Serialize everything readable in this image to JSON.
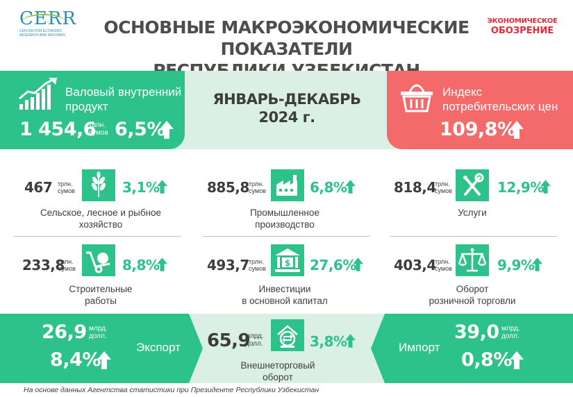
{
  "header": {
    "cerr_logo": "CERR",
    "cerr_sub": "Center for economic research and reforms",
    "title_line1": "ОСНОВНЫЕ МАКРОЭКОНОМИЧЕСКИЕ ПОКАЗАТЕЛИ",
    "title_line2": "РЕСПУБЛИКИ УЗБЕКИСТАН",
    "eo_logo_line1": "ЭКОНОМИЧЕСКОЕ",
    "eo_logo_line2": "ОБОЗРЕНИЕ"
  },
  "period": {
    "line1": "ЯНВАРЬ-ДЕКАБРЬ",
    "line2": "2024 г."
  },
  "gdp": {
    "label_line1": "Валовый внутренний",
    "label_line2": "продукт",
    "value": "1 454,6",
    "unit_line1": "трлн.",
    "unit_line2": "сумов",
    "growth": "6,5%"
  },
  "cpi": {
    "label_line1": "Индекс",
    "label_line2": "потребительских цен",
    "value": "109,8%"
  },
  "sectors": [
    {
      "value": "467",
      "unit_line1": "трлн.",
      "unit_line2": "сумов",
      "growth": "3,1%",
      "label_line1": "Сельское, лесное и рыбное",
      "label_line2": "хозяйство",
      "icon": "wheat-icon"
    },
    {
      "value": "885,8",
      "unit_line1": "трлн.",
      "unit_line2": "сумов",
      "growth": "6,8%",
      "label_line1": "Промышленное",
      "label_line2": "производство",
      "icon": "factory-icon"
    },
    {
      "value": "818,4",
      "unit_line1": "трлн.",
      "unit_line2": "сумов",
      "growth": "12,9%",
      "label_line1": "Услуги",
      "label_line2": "",
      "icon": "tools-icon"
    },
    {
      "value": "233,8",
      "unit_line1": "трлн.",
      "unit_line2": "сумов",
      "growth": "8,8%",
      "label_line1": "Строительные",
      "label_line2": "работы",
      "icon": "wheelbarrow-icon"
    },
    {
      "value": "493,7",
      "unit_line1": "трлн.",
      "unit_line2": "сумов",
      "growth": "27,6%",
      "label_line1": "Инвестиции",
      "label_line2": "в основной капитал",
      "icon": "bank-icon"
    },
    {
      "value": "403,4",
      "unit_line1": "трлн.",
      "unit_line2": "сумов",
      "growth": "9,9%",
      "label_line1": "Оборот",
      "label_line2": "розничной торговли",
      "icon": "scales-icon"
    }
  ],
  "export": {
    "value": "26,9",
    "unit_line1": "млрд.",
    "unit_line2": "долл.",
    "growth": "8,4%",
    "label": "Экспорт"
  },
  "trade": {
    "value": "65,9",
    "unit_line1": "млрд.",
    "unit_line2": "долл.",
    "growth": "3,8%",
    "label_line1": "Внешнеторговый",
    "label_line2": "оборот"
  },
  "import": {
    "value": "39,0",
    "unit_line1": "млрд.",
    "unit_line2": "долл.",
    "growth": "0,8%",
    "label": "Импорт"
  },
  "footnote": "На основе данных Агентства статистики при Президенте Республики Узбекистан",
  "colors": {
    "green": "#2cc28a",
    "light_green": "#daf0e4",
    "red": "#f46a6a",
    "text": "#3d3d3d"
  }
}
